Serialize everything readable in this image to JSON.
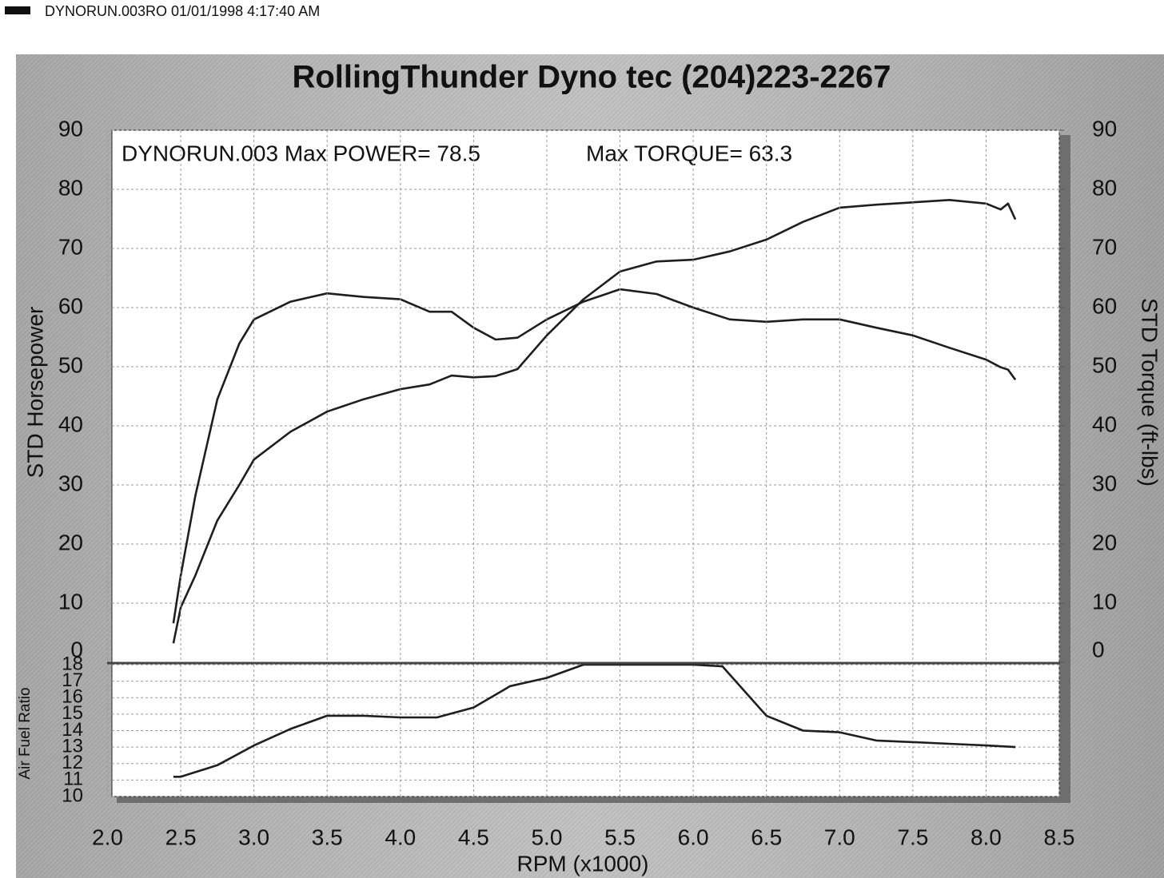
{
  "header": {
    "text": "DYNORUN.003RO  01/01/1998 4:17:40 AM"
  },
  "chart_data": [
    {
      "type": "line",
      "title": "RollingThunder Dyno tec (204)223-2267",
      "annotations": [
        "DYNORUN.003  Max POWER= 78.5",
        "Max TORQUE= 63.3"
      ],
      "ylabel": "STD Horsepower",
      "y2label": "STD Torque (ft-lbs)",
      "xlim": [
        2.0,
        8.5
      ],
      "ylim": [
        0,
        90
      ],
      "yticks": [
        0,
        10,
        20,
        30,
        40,
        50,
        60,
        70,
        80,
        90
      ],
      "y2lim": [
        0,
        90
      ],
      "y2ticks": [
        0,
        10,
        20,
        30,
        40,
        50,
        60,
        70,
        80,
        90
      ],
      "grid": true,
      "x": [
        2.45,
        2.5,
        2.6,
        2.75,
        2.9,
        3.0,
        3.25,
        3.5,
        3.75,
        4.0,
        4.2,
        4.35,
        4.5,
        4.65,
        4.8,
        5.0,
        5.25,
        5.5,
        5.75,
        6.0,
        6.25,
        6.5,
        6.75,
        7.0,
        7.25,
        7.5,
        7.75,
        8.0,
        8.1,
        8.15,
        8.2
      ],
      "series": [
        {
          "color": "#1e1e1e",
          "values": [
            3.2,
            9.3,
            14.7,
            24,
            30,
            34.3,
            39,
            42.4,
            44.5,
            46.2,
            47.0,
            48.5,
            48.2,
            48.4,
            49.6,
            55.3,
            61.4,
            66.1,
            67.8,
            68.1,
            69.5,
            71.5,
            74.5,
            76.9,
            77.4,
            77.8,
            78.2,
            77.6,
            76.6,
            77.6,
            74.9
          ]
        },
        {
          "color": "#1e1e1e",
          "axis": "y2",
          "values": [
            6.6,
            14.7,
            28.2,
            44.5,
            53.9,
            58,
            61,
            62.4,
            61.8,
            61.4,
            59.3,
            59.3,
            56.6,
            54.6,
            54.9,
            58,
            61,
            63.1,
            62.3,
            60,
            58,
            57.6,
            58,
            58,
            56.6,
            55.3,
            53.2,
            51.2,
            49.9,
            49.5,
            47.8
          ]
        }
      ]
    },
    {
      "type": "line",
      "ylabel": "Air Fuel Ratio",
      "xlabel": "RPM (x1000)",
      "xlim": [
        2.0,
        8.5
      ],
      "xticks": [
        {
          "value": 2,
          "label": "2.0"
        },
        2.5,
        {
          "value": 3,
          "label": "3.0"
        },
        3.5,
        {
          "value": 4,
          "label": "4.0"
        },
        4.5,
        {
          "value": 5,
          "label": "5.0"
        },
        5.5,
        {
          "value": 6,
          "label": "6.0"
        },
        6.5,
        {
          "value": 7,
          "label": "7.0"
        },
        7.5,
        {
          "value": 8,
          "label": "8.0"
        },
        8.5
      ],
      "ylim": [
        10,
        18
      ],
      "yticks": [
        10,
        11,
        12,
        13,
        14,
        15,
        16,
        17,
        18
      ],
      "grid": true,
      "x": [
        2.45,
        2.5,
        2.75,
        3.0,
        3.25,
        3.5,
        3.75,
        4.0,
        4.25,
        4.5,
        4.75,
        5.0,
        5.25,
        5.5,
        5.75,
        6.0,
        6.2,
        6.5,
        6.75,
        7.0,
        7.25,
        7.5,
        7.75,
        8.0,
        8.2
      ],
      "series": [
        {
          "color": "#1e1e1e",
          "values": [
            11.2,
            11.2,
            11.9,
            13.1,
            14.1,
            14.9,
            14.9,
            14.8,
            14.8,
            15.4,
            16.7,
            17.2,
            18,
            18,
            18,
            18,
            17.9,
            14.9,
            14,
            13.9,
            13.4,
            13.3,
            13.2,
            13.1,
            13
          ]
        }
      ]
    }
  ]
}
